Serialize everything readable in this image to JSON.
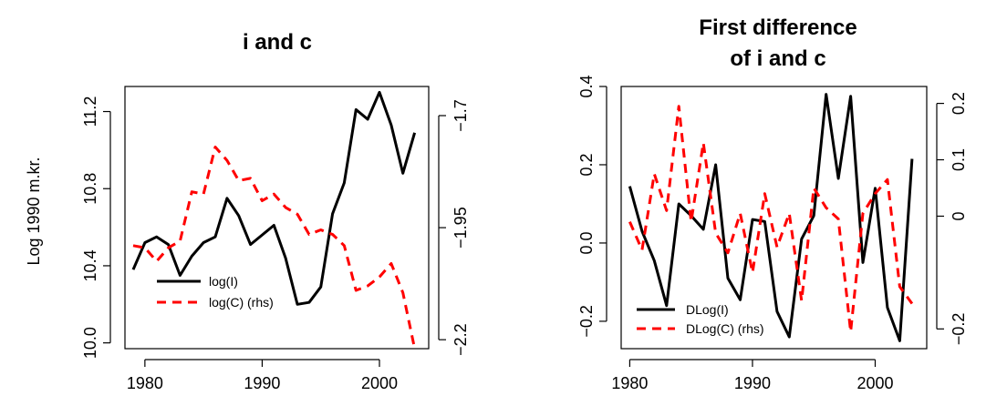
{
  "chart_data": [
    {
      "type": "line",
      "title": "i and c",
      "ylabel": "Log 1990 m.kr.",
      "xlim": [
        1978.3,
        2004.2
      ],
      "x_ticks": [
        "1980",
        "1990",
        "2000"
      ],
      "ylim_left": [
        9.97,
        11.33
      ],
      "y_ticks_left": [
        "10.0",
        "10.4",
        "10.8",
        "11.2"
      ],
      "ylim_right": [
        -2.22,
        -1.635
      ],
      "y_ticks_right": [
        "-2.2",
        "-1.95",
        "-1.7"
      ],
      "legend_position": "bottom-left",
      "series": [
        {
          "name": "log(I)",
          "axis": "left",
          "color": "#000000",
          "dash": "solid",
          "x": [
            1979,
            1980,
            1981,
            1982,
            1983,
            1984,
            1985,
            1986,
            1987,
            1988,
            1989,
            1990,
            1991,
            1992,
            1993,
            1994,
            1995,
            1996,
            1997,
            1998,
            1999,
            2000,
            2001,
            2002,
            2003
          ],
          "values": [
            10.38,
            10.52,
            10.55,
            10.51,
            10.35,
            10.45,
            10.52,
            10.55,
            10.75,
            10.66,
            10.51,
            10.56,
            10.61,
            10.44,
            10.2,
            10.21,
            10.29,
            10.67,
            10.83,
            11.21,
            11.16,
            11.3,
            11.13,
            10.88,
            11.09
          ]
        },
        {
          "name": "log(C) (rhs)",
          "axis": "right",
          "color": "#ff0000",
          "dash": "dashed",
          "x": [
            1979,
            1980,
            1981,
            1982,
            1983,
            1984,
            1985,
            1986,
            1987,
            1988,
            1989,
            1990,
            1991,
            1992,
            1993,
            1994,
            1995,
            1996,
            1997,
            1998,
            1999,
            2000,
            2001,
            2002,
            2003
          ],
          "values": [
            -1.99,
            -1.995,
            -2.025,
            -1.995,
            -1.98,
            -1.87,
            -1.875,
            -1.77,
            -1.8,
            -1.845,
            -1.84,
            -1.89,
            -1.875,
            -1.905,
            -1.92,
            -1.965,
            -1.955,
            -1.965,
            -1.99,
            -2.09,
            -2.08,
            -2.06,
            -2.03,
            -2.095,
            -2.22
          ]
        }
      ]
    },
    {
      "type": "line",
      "title": "First difference of i and c",
      "title_lines": [
        "First difference",
        "of i and c"
      ],
      "ylabel": "",
      "xlim": [
        1979.3,
        2004.2
      ],
      "x_ticks": [
        "1980",
        "1990",
        "2000"
      ],
      "ylim_left": [
        -0.27,
        0.4
      ],
      "y_ticks_left": [
        "-0.2",
        "0.0",
        "0.2",
        "0.4"
      ],
      "ylim_right": [
        -0.235,
        0.23
      ],
      "y_ticks_right": [
        "-0.2",
        "0",
        "0.1",
        "0.2"
      ],
      "legend_position": "bottom-left",
      "series": [
        {
          "name": "DLog(I)",
          "axis": "left",
          "color": "#000000",
          "dash": "solid",
          "x": [
            1980,
            1981,
            1982,
            1983,
            1984,
            1985,
            1986,
            1987,
            1988,
            1989,
            1990,
            1991,
            1992,
            1993,
            1994,
            1995,
            1996,
            1997,
            1998,
            1999,
            2000,
            2001,
            2002,
            2003
          ],
          "values": [
            0.145,
            0.03,
            -0.045,
            -0.16,
            0.1,
            0.07,
            0.035,
            0.2,
            -0.09,
            -0.145,
            0.06,
            0.055,
            -0.175,
            -0.24,
            0.01,
            0.07,
            0.38,
            0.165,
            0.375,
            -0.05,
            0.14,
            -0.165,
            -0.25,
            0.215
          ]
        },
        {
          "name": "DLog(C) (rhs)",
          "axis": "right",
          "color": "#ff0000",
          "dash": "dashed",
          "x": [
            1980,
            1981,
            1982,
            1983,
            1984,
            1985,
            1986,
            1987,
            1988,
            1989,
            1990,
            1991,
            1992,
            1993,
            1994,
            1995,
            1996,
            1997,
            1998,
            1999,
            2000,
            2001,
            2002,
            2003
          ],
          "values": [
            -0.01,
            -0.06,
            0.075,
            0.01,
            0.195,
            -0.01,
            0.13,
            -0.03,
            -0.065,
            0.005,
            -0.1,
            0.04,
            -0.055,
            0.005,
            -0.15,
            0.05,
            0.015,
            -0.005,
            -0.205,
            0.005,
            0.04,
            0.065,
            -0.125,
            -0.155
          ]
        }
      ]
    }
  ]
}
